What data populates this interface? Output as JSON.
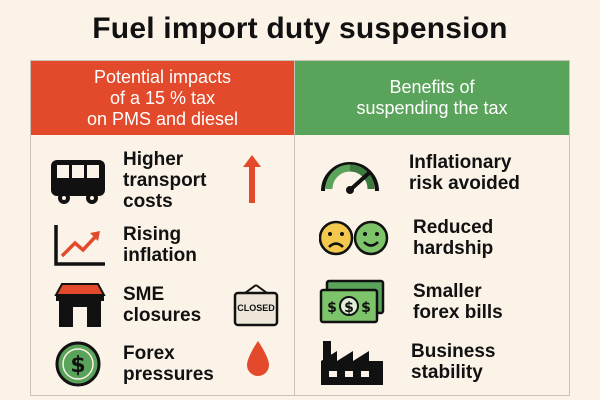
{
  "title": "Fuel import duty suspension",
  "colors": {
    "left_header": "#e34a2b",
    "right_header": "#5aa35a",
    "accent_red": "#e34a2b",
    "accent_green": "#5aa35a",
    "background": "#fbf3e7"
  },
  "left": {
    "header": "Potential impacts\nof a 15 % tax\non PMS and diesel",
    "items": [
      {
        "label": "Higher\ntransport\ncosts",
        "icon": "bus-icon",
        "extra_icon": "up-arrow-icon"
      },
      {
        "label": "Rising\ninflation",
        "icon": "rising-chart-icon"
      },
      {
        "label": "SME\nclosures",
        "icon": "shop-icon",
        "extra_icon": "closed-sign-icon",
        "extra_text": "CLOSED"
      },
      {
        "label": "Forex\npressures",
        "icon": "dollar-coin-icon",
        "extra_icon": "fuel-drop-icon"
      }
    ]
  },
  "right": {
    "header": "Benefits of\nsuspending the tax",
    "items": [
      {
        "label": "Inflationary\nrisk avoided",
        "icon": "gauge-icon"
      },
      {
        "label": "Reduced\nhardship",
        "icon": "sad-happy-faces-icon"
      },
      {
        "label": "Smaller\nforex bills",
        "icon": "banknotes-icon"
      },
      {
        "label": "Business\nstability",
        "icon": "factory-icon"
      }
    ]
  }
}
